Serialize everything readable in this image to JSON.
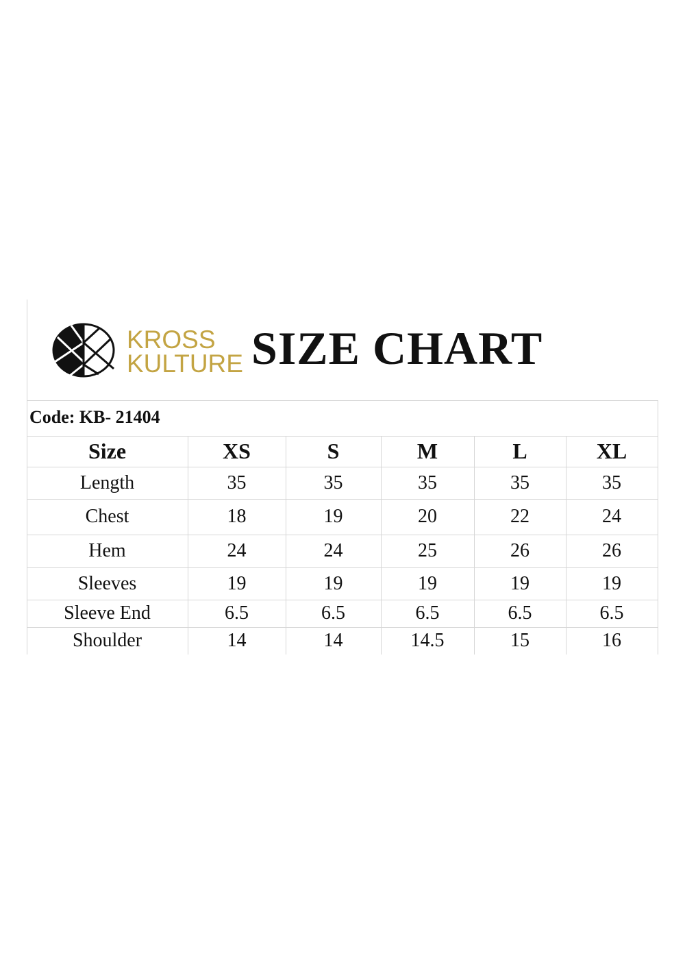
{
  "brand": {
    "name_line1": "KROSS",
    "name_line2": "KULTURE",
    "color": "#c3a443"
  },
  "title": "SIZE CHART",
  "code": "Code: KB- 21404",
  "table": {
    "headers": [
      "Size",
      "XS",
      "S",
      "M",
      "L",
      "XL"
    ],
    "rows": [
      {
        "label": "Length",
        "values": [
          "35",
          "35",
          "35",
          "35",
          "35"
        ]
      },
      {
        "label": "Chest",
        "values": [
          "18",
          "19",
          "20",
          "22",
          "24"
        ]
      },
      {
        "label": "Hem",
        "values": [
          "24",
          "24",
          "25",
          "26",
          "26"
        ]
      },
      {
        "label": "Sleeves",
        "values": [
          "19",
          "19",
          "19",
          "19",
          "19"
        ]
      },
      {
        "label": "Sleeve End",
        "values": [
          "6.5",
          "6.5",
          "6.5",
          "6.5",
          "6.5"
        ]
      },
      {
        "label": "Shoulder",
        "values": [
          "14",
          "14",
          "14.5",
          "15",
          "16"
        ]
      }
    ]
  }
}
